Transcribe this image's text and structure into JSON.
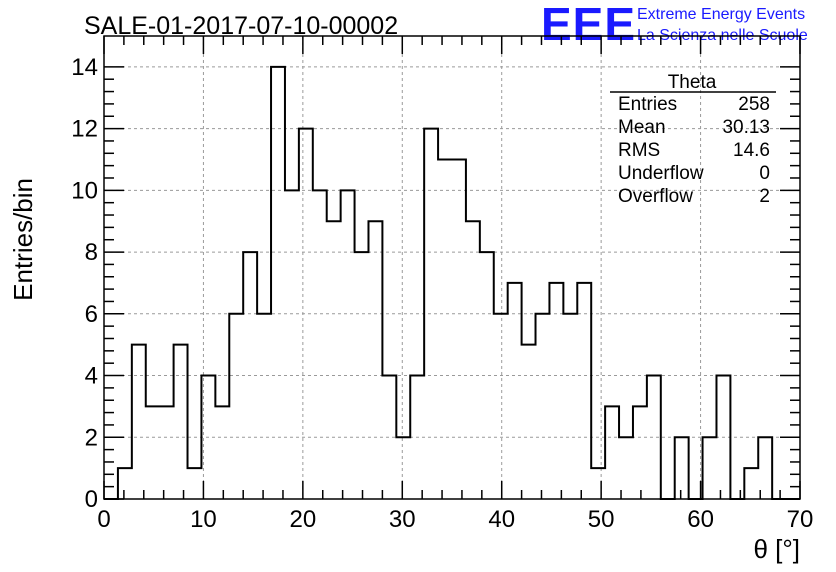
{
  "header": {
    "title": "SALE-01-2017-07-10-00002",
    "logo_text": "EEE",
    "logo_line1": "Extreme Energy Events",
    "logo_line2": "La Scienza nelle Scuole"
  },
  "stats_box": {
    "name": "Theta",
    "rows": [
      {
        "label": "Entries",
        "value": "258"
      },
      {
        "label": "Mean",
        "value": "30.13"
      },
      {
        "label": "RMS",
        "value": "14.6"
      },
      {
        "label": "Underflow",
        "value": "0"
      },
      {
        "label": "Overflow",
        "value": "2"
      }
    ]
  },
  "chart_data": {
    "type": "bar",
    "style": "step-histogram",
    "title": "SALE-01-2017-07-10-00002",
    "xlabel": "θ [°]",
    "ylabel": "Entries/bin",
    "xlim": [
      0,
      70
    ],
    "ylim": [
      0,
      15
    ],
    "bin_width": 1.4,
    "bin_edges_start": 0,
    "values": [
      0,
      1,
      5,
      3,
      3,
      5,
      1,
      4,
      3,
      6,
      8,
      6,
      14,
      10,
      12,
      10,
      9,
      10,
      8,
      9,
      4,
      2,
      4,
      12,
      11,
      11,
      9,
      8,
      6,
      7,
      5,
      6,
      7,
      6,
      7,
      1,
      3,
      2,
      3,
      4,
      0,
      2,
      0,
      2,
      4,
      0,
      1,
      2,
      0,
      0
    ],
    "x_ticks": [
      0,
      10,
      20,
      30,
      40,
      50,
      60,
      70
    ],
    "y_ticks": [
      0,
      2,
      4,
      6,
      8,
      10,
      12,
      14
    ],
    "grid": true,
    "line_color": "#000000",
    "grid_color": "#9a9a9a"
  }
}
